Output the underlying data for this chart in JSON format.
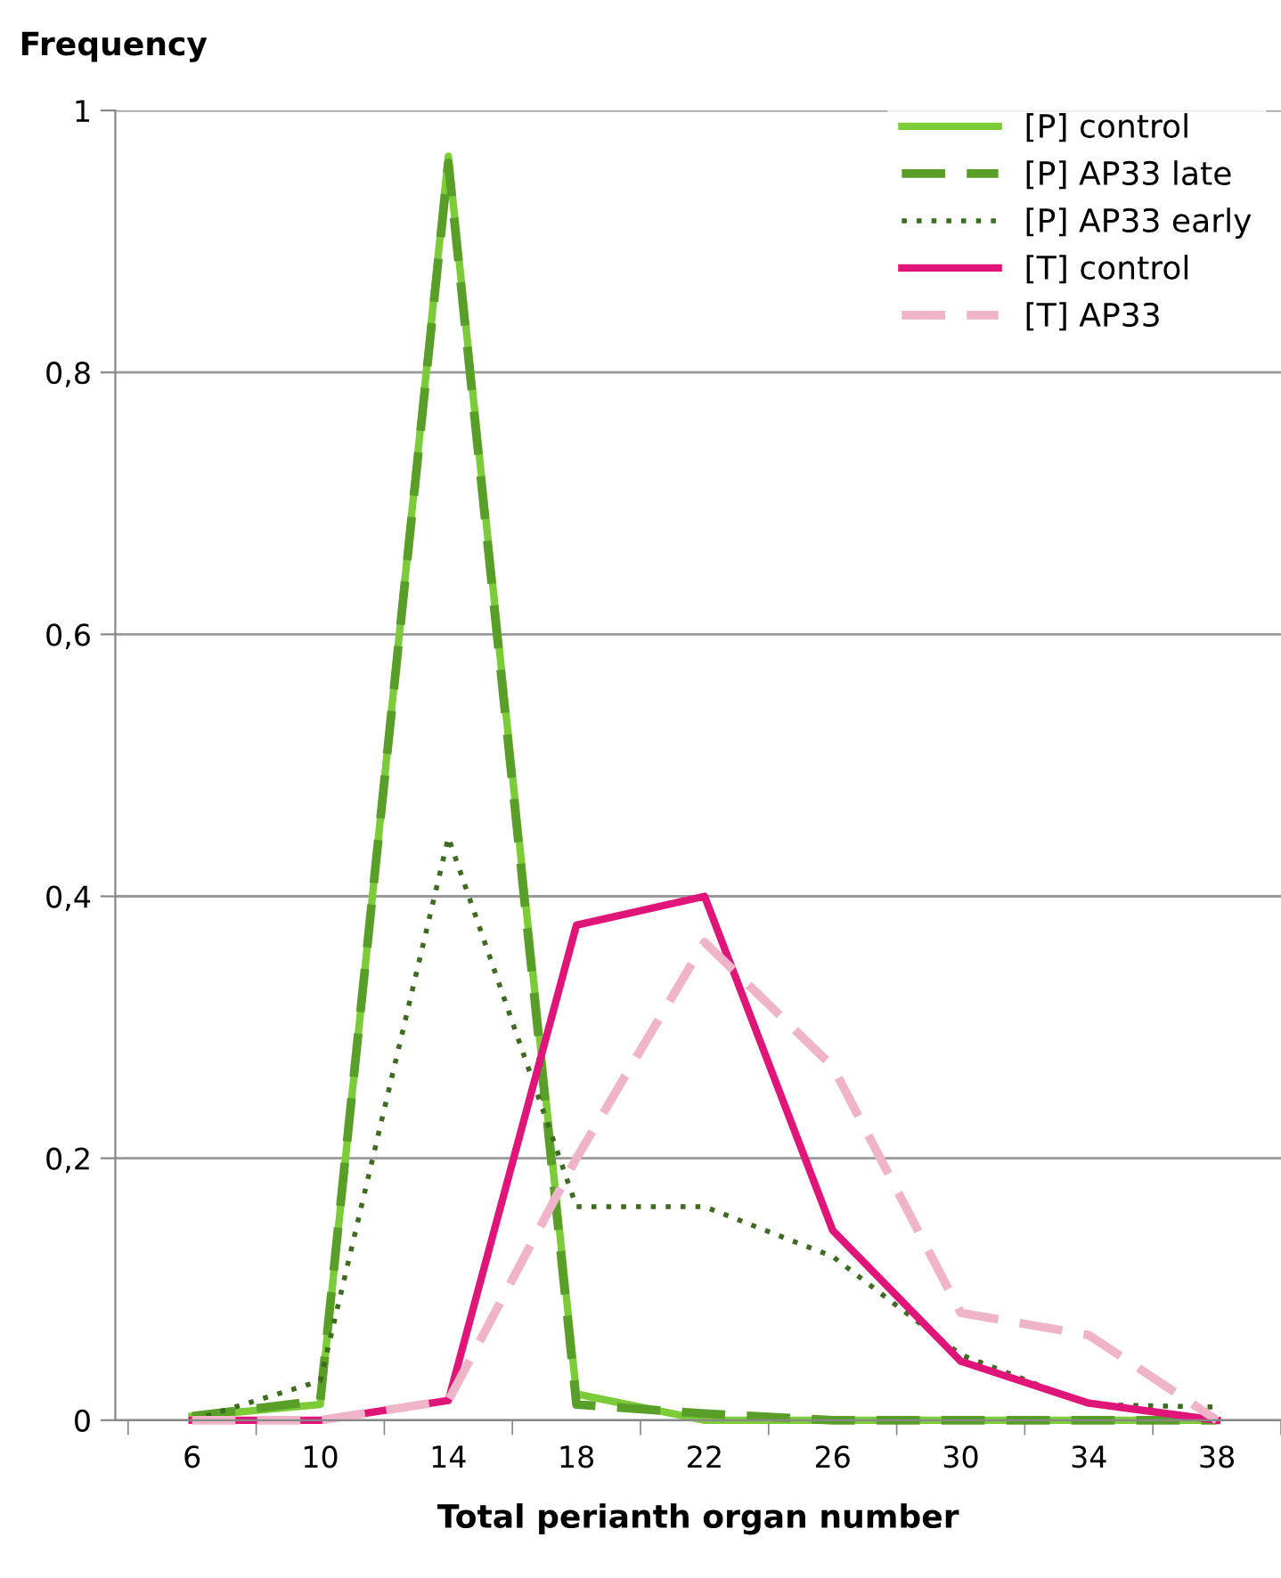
{
  "chart_data": {
    "type": "line",
    "ylabel": "Frequency",
    "xlabel": "Total perianth organ number",
    "categories": [
      "6",
      "10",
      "14",
      "18",
      "22",
      "26",
      "30",
      "34",
      "38"
    ],
    "series": [
      {
        "name": "[P] control",
        "color": "#7ccc3a",
        "line_style": "solid",
        "values": [
          0.003,
          0.012,
          0.965,
          0.02,
          0,
          0,
          0,
          0,
          0
        ]
      },
      {
        "name": "[P] AP33 late",
        "color": "#5a9e2a",
        "line_style": "dashed",
        "values": [
          0.003,
          0.015,
          0.96,
          0.012,
          0.005,
          0,
          0,
          0,
          0
        ]
      },
      {
        "name": "[P] AP33 early",
        "color": "#3d6b1f",
        "line_style": "dotted",
        "values": [
          0,
          0.03,
          0.445,
          0.163,
          0.163,
          0.125,
          0.05,
          0.012,
          0.01
        ]
      },
      {
        "name": "[T] control",
        "color": "#e0157a",
        "line_style": "solid",
        "values": [
          0,
          0,
          0.015,
          0.378,
          0.4,
          0.145,
          0.045,
          0.013,
          0
        ]
      },
      {
        "name": "[T] AP33",
        "color": "#f0b4c8",
        "line_style": "dashed",
        "values": [
          0,
          0,
          0.015,
          0.2,
          0.365,
          0.27,
          0.082,
          0.065,
          0
        ]
      }
    ],
    "ylim": [
      0,
      1
    ],
    "yticks": [
      0,
      {
        "value": 0.2,
        "label": "0,2"
      },
      {
        "value": 0.4,
        "label": "0,4"
      },
      {
        "value": 0.6,
        "label": "0,6"
      },
      {
        "value": 0.8,
        "label": "0,8"
      },
      1
    ],
    "grid": "y",
    "legend": "top right",
    "marker": "none"
  }
}
